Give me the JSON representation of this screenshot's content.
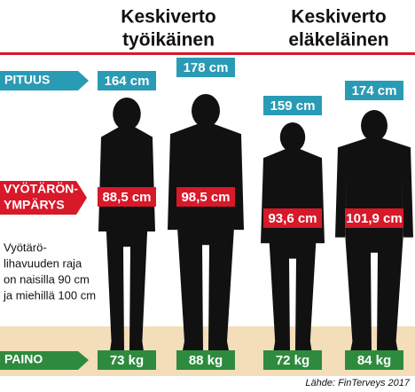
{
  "groups": [
    {
      "title_lines": [
        "Keskiverto",
        "työikäinen"
      ]
    },
    {
      "title_lines": [
        "Keskiverto",
        "eläkeläinen"
      ]
    }
  ],
  "labels": {
    "height": "PITUUS",
    "waist_lines": [
      "VYÖTÄRÖN-",
      "YMPÄRYS"
    ],
    "weight": "PAINO"
  },
  "persons": [
    {
      "height": "164 cm",
      "waist": "88,5 cm",
      "weight": "73 kg"
    },
    {
      "height": "178 cm",
      "waist": "98,5 cm",
      "weight": "88 kg"
    },
    {
      "height": "159 cm",
      "waist": "93,6 cm",
      "weight": "72 kg"
    },
    {
      "height": "174 cm",
      "waist": "101,9 cm",
      "weight": "84 kg"
    }
  ],
  "note_lines": [
    "Vyötärö-",
    "lihavuuden raja",
    "on naisilla 90 cm",
    "ja miehillä 100 cm"
  ],
  "source": "Lähde: FinTerveys 2017"
}
